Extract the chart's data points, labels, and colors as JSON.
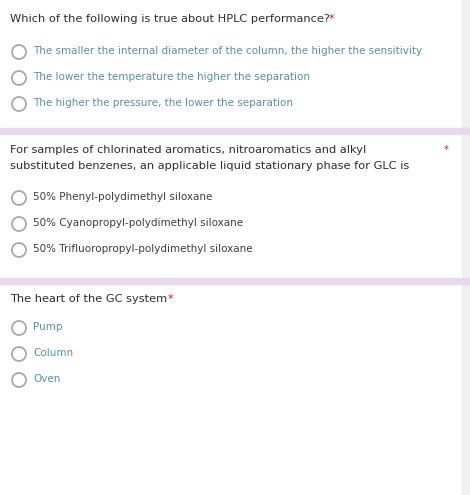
{
  "bg_color": "#ffffff",
  "divider_color": "#e8d8f0",
  "question_color": "#2d2d2d",
  "option_dark_color": "#3d3d3d",
  "blue_option_color": "#5b7fc4",
  "teal_option_color": "#5b8fa8",
  "red_star_color": "#cc2200",
  "question1": "Which of the following is true about HPLC performance? ",
  "q1_star": "*",
  "q1_options": [
    "The smaller the internal diameter of the column, the higher the sensitivity",
    "The lower the temperature the higher the separation",
    "The higher the pressure, the lower the separation"
  ],
  "question2_line1": "For samples of chlorinated aromatics, nitroaromatics and alkyl",
  "question2_line2": "substituted benzenes, an applicable liquid stationary phase for GLC is",
  "q2_star": "*",
  "q2_options": [
    "50% Phenyl-polydimethyl siloxane",
    "50% Cyanopropyl-polydimethyl siloxane",
    "50% Trifluoropropyl-polydimethyl siloxane"
  ],
  "question3": "The heart of the GC system ",
  "q3_star": "*",
  "q3_options": [
    "Pump",
    "Column",
    "Oven"
  ],
  "fig_width": 4.7,
  "fig_height": 4.95,
  "dpi": 100
}
